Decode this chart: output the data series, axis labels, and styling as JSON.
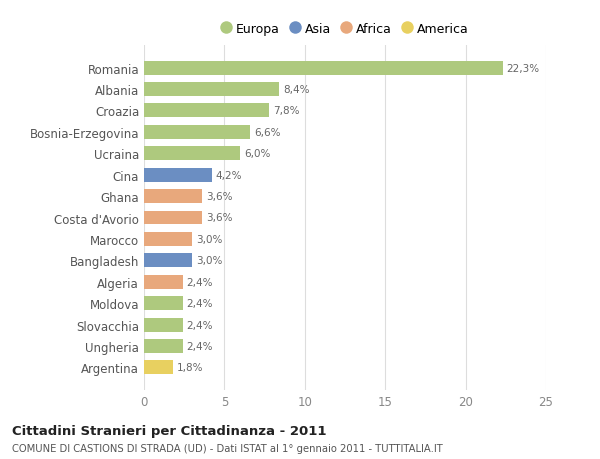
{
  "countries": [
    "Romania",
    "Albania",
    "Croazia",
    "Bosnia-Erzegovina",
    "Ucraina",
    "Cina",
    "Ghana",
    "Costa d'Avorio",
    "Marocco",
    "Bangladesh",
    "Algeria",
    "Moldova",
    "Slovacchia",
    "Ungheria",
    "Argentina"
  ],
  "values": [
    22.3,
    8.4,
    7.8,
    6.6,
    6.0,
    4.2,
    3.6,
    3.6,
    3.0,
    3.0,
    2.4,
    2.4,
    2.4,
    2.4,
    1.8
  ],
  "labels": [
    "22,3%",
    "8,4%",
    "7,8%",
    "6,6%",
    "6,0%",
    "4,2%",
    "3,6%",
    "3,6%",
    "3,0%",
    "3,0%",
    "2,4%",
    "2,4%",
    "2,4%",
    "2,4%",
    "1,8%"
  ],
  "continents": [
    "Europa",
    "Europa",
    "Europa",
    "Europa",
    "Europa",
    "Asia",
    "Africa",
    "Africa",
    "Africa",
    "Asia",
    "Africa",
    "Europa",
    "Europa",
    "Europa",
    "America"
  ],
  "colors": {
    "Europa": "#aec97e",
    "Asia": "#6b8ec2",
    "Africa": "#e8a87c",
    "America": "#e8d060"
  },
  "xlim": [
    0,
    25
  ],
  "xticks": [
    0,
    5,
    10,
    15,
    20,
    25
  ],
  "title": "Cittadini Stranieri per Cittadinanza - 2011",
  "subtitle": "COMUNE DI CASTIONS DI STRADA (UD) - Dati ISTAT al 1° gennaio 2011 - TUTTITALIA.IT",
  "background_color": "#ffffff",
  "bar_background": "#ffffff",
  "grid_color": "#dddddd",
  "legend_order": [
    "Europa",
    "Asia",
    "Africa",
    "America"
  ]
}
